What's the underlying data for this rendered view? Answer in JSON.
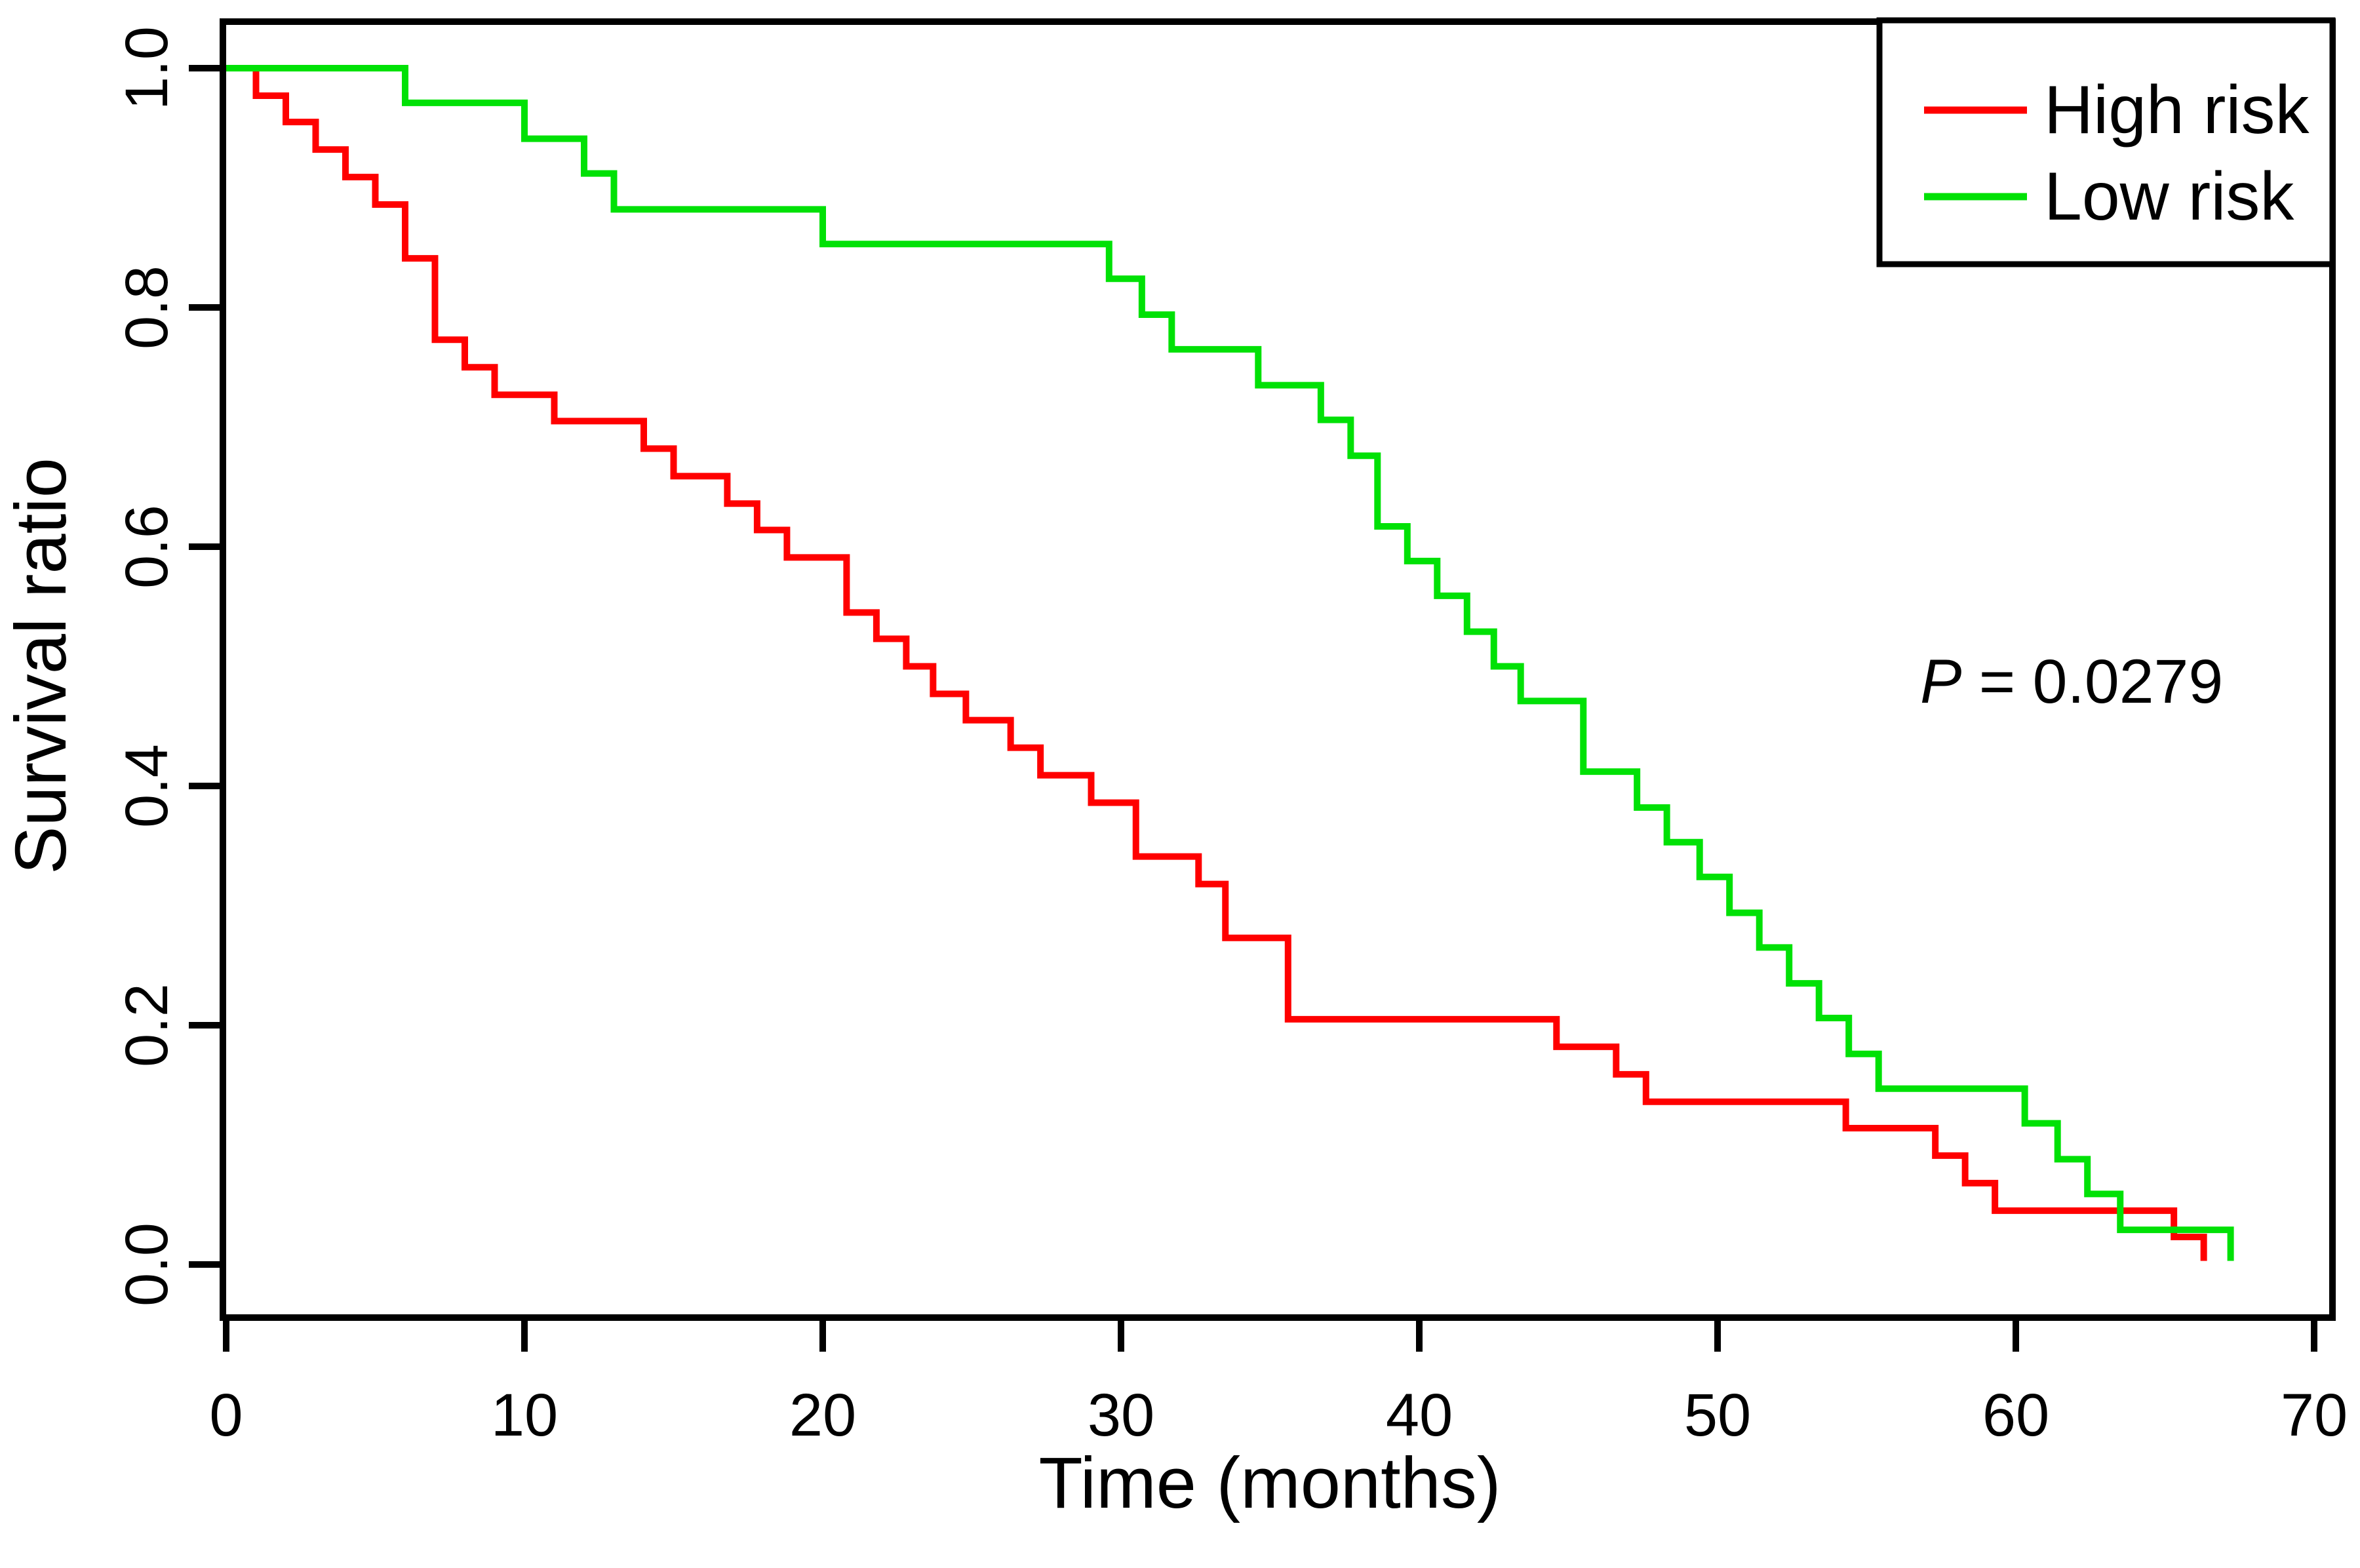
{
  "chart_data": {
    "type": "line",
    "subtype": "kaplan-meier-step-curves",
    "title": "",
    "xlabel": "Time (months)",
    "ylabel": "Survival ratio",
    "xlim": [
      0,
      70
    ],
    "ylim": [
      0.0,
      1.0
    ],
    "x_ticks": [
      "0",
      "10",
      "20",
      "30",
      "40",
      "50",
      "60",
      "70"
    ],
    "y_ticks": [
      "0.0",
      "0.2",
      "0.4",
      "0.6",
      "0.8",
      "1.0"
    ],
    "grid": false,
    "axis_color": "#000000",
    "background_color": "#ffffff",
    "legend": {
      "position": "top-right",
      "border": true,
      "entries": [
        {
          "label": "High risk",
          "color": "#ff0000"
        },
        {
          "label": "Low  risk",
          "color": "#00e106"
        }
      ]
    },
    "annotation": {
      "text_italic": "P",
      "text_rest": " = 0.0279",
      "x_months": 56.8,
      "y_ratio": 0.487
    },
    "series": [
      {
        "name": "High risk",
        "color": "#ff0000",
        "points": [
          [
            0,
            1.0
          ],
          [
            1,
            0.977
          ],
          [
            2,
            0.955
          ],
          [
            3,
            0.932
          ],
          [
            4,
            0.909
          ],
          [
            5,
            0.886
          ],
          [
            6,
            0.841
          ],
          [
            7,
            0.773
          ],
          [
            8,
            0.75
          ],
          [
            9,
            0.727
          ],
          [
            11,
            0.705
          ],
          [
            14,
            0.682
          ],
          [
            15,
            0.659
          ],
          [
            16.8,
            0.636
          ],
          [
            17.8,
            0.614
          ],
          [
            18.8,
            0.591
          ],
          [
            20.8,
            0.545
          ],
          [
            21.8,
            0.523
          ],
          [
            22.8,
            0.5
          ],
          [
            23.7,
            0.477
          ],
          [
            24.8,
            0.455
          ],
          [
            26.3,
            0.432
          ],
          [
            27.3,
            0.409
          ],
          [
            29,
            0.386
          ],
          [
            30.5,
            0.341
          ],
          [
            32.6,
            0.318
          ],
          [
            33.5,
            0.273
          ],
          [
            35.6,
            0.205
          ],
          [
            44.6,
            0.182
          ],
          [
            46.6,
            0.159
          ],
          [
            47.6,
            0.136
          ],
          [
            54.3,
            0.114
          ],
          [
            57.3,
            0.091
          ],
          [
            58.3,
            0.068
          ],
          [
            59.3,
            0.045
          ],
          [
            65.3,
            0.023
          ],
          [
            66.3,
            0.003
          ]
        ]
      },
      {
        "name": "Low risk",
        "color": "#00e106",
        "points": [
          [
            0,
            1.0
          ],
          [
            6,
            0.971
          ],
          [
            10,
            0.941
          ],
          [
            12,
            0.912
          ],
          [
            13,
            0.882
          ],
          [
            20,
            0.853
          ],
          [
            29.6,
            0.824
          ],
          [
            30.7,
            0.794
          ],
          [
            31.7,
            0.765
          ],
          [
            34.6,
            0.735
          ],
          [
            36.7,
            0.706
          ],
          [
            37.7,
            0.676
          ],
          [
            38.6,
            0.617
          ],
          [
            39.6,
            0.588
          ],
          [
            40.6,
            0.559
          ],
          [
            41.6,
            0.529
          ],
          [
            42.5,
            0.5
          ],
          [
            43.4,
            0.471
          ],
          [
            45.5,
            0.412
          ],
          [
            47.3,
            0.382
          ],
          [
            48.3,
            0.353
          ],
          [
            49.4,
            0.324
          ],
          [
            50.4,
            0.294
          ],
          [
            51.4,
            0.265
          ],
          [
            52.4,
            0.235
          ],
          [
            53.4,
            0.206
          ],
          [
            54.4,
            0.176
          ],
          [
            55.4,
            0.147
          ],
          [
            60.3,
            0.118
          ],
          [
            61.4,
            0.088
          ],
          [
            62.4,
            0.059
          ],
          [
            63.5,
            0.029
          ],
          [
            67.2,
            0.003
          ]
        ]
      }
    ]
  }
}
